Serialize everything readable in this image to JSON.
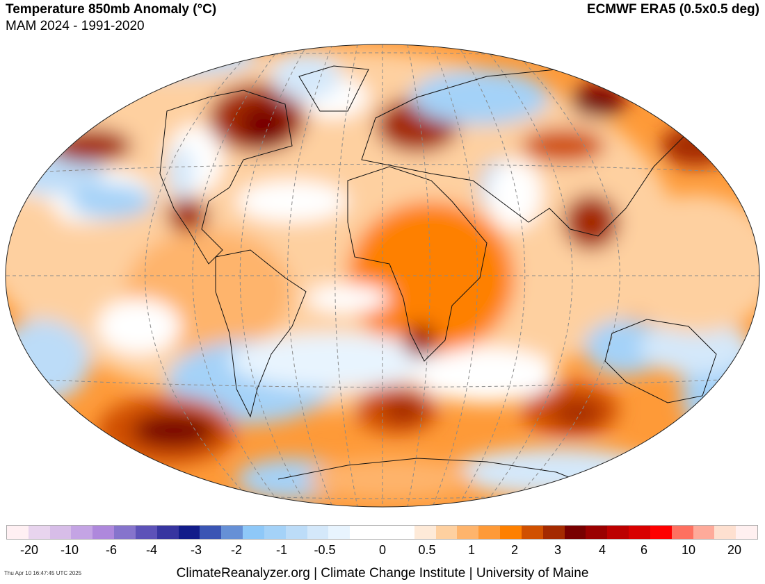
{
  "header": {
    "title": "Temperature 850mb Anomaly (°C)",
    "subtitle": "MAM 2024 - 1991-2020",
    "dataset": "ECMWF ERA5 (0.5x0.5 deg)"
  },
  "colorbar": {
    "colors": [
      "#fff0f3",
      "#e8d4ee",
      "#d7bde8",
      "#c4a4e4",
      "#ae88dc",
      "#8674cc",
      "#5d52b8",
      "#3735a0",
      "#121c8a",
      "#3a55b4",
      "#6690d6",
      "#8ec8f8",
      "#a4d2f8",
      "#bcdcf8",
      "#d4e8fa",
      "#e8f4fe",
      "#ffffff",
      "#ffffff",
      "#ffffff",
      "#feead8",
      "#fed0a0",
      "#feb46c",
      "#fe9a38",
      "#fe8000",
      "#d05000",
      "#a42a00",
      "#780000",
      "#9a0000",
      "#bc0000",
      "#d80000",
      "#fe0000",
      "#fe7060",
      "#feaa9a",
      "#fee0d0",
      "#fff0f0"
    ],
    "labels": [
      "-20",
      "-10",
      "-6",
      "-4",
      "-3",
      "-2",
      "-1",
      "-0.5",
      "0",
      "0.5",
      "1",
      "2",
      "3",
      "4",
      "6",
      "10",
      "20"
    ]
  },
  "footer": {
    "timestamp": "Thu Apr 10 16:47:45 UTC 2025",
    "credit": "ClimateReanalyzer.org | Climate Change Institute | University of Maine"
  }
}
